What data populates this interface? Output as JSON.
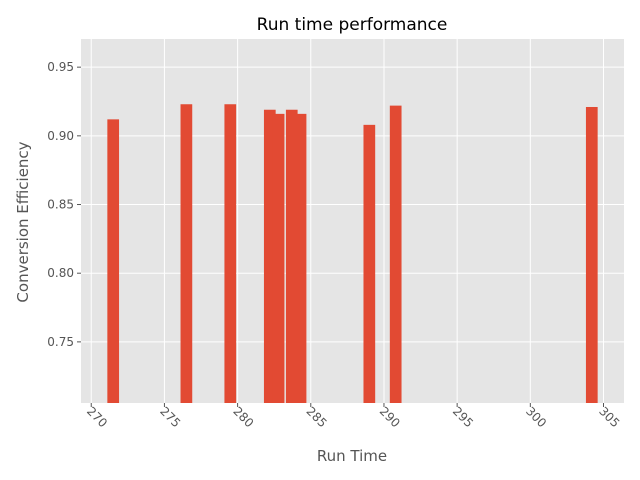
{
  "chart_data": {
    "type": "bar",
    "title": "Run time performance",
    "xlabel": "Run Time",
    "ylabel": "Conversion Efficiency",
    "xlim": [
      269.3,
      306.4
    ],
    "ylim": [
      0.7055,
      0.9705
    ],
    "xticks": [
      270,
      275,
      280,
      285,
      290,
      295,
      300,
      305
    ],
    "yticks": [
      0.75,
      0.8,
      0.85,
      0.9,
      0.95
    ],
    "ytick_format": 2,
    "xtick_rotation": -45,
    "grid": true,
    "bar_width": 0.8,
    "colors": {
      "bar": "#E24A33",
      "plot_bg": "#E5E5E5",
      "grid": "#FFFFFF"
    },
    "points": [
      {
        "x": 271.5,
        "y": 0.912
      },
      {
        "x": 276.5,
        "y": 0.923
      },
      {
        "x": 279.5,
        "y": 0.923
      },
      {
        "x": 282.2,
        "y": 0.919
      },
      {
        "x": 282.8,
        "y": 0.916
      },
      {
        "x": 283.7,
        "y": 0.919
      },
      {
        "x": 284.3,
        "y": 0.916
      },
      {
        "x": 289.0,
        "y": 0.908
      },
      {
        "x": 290.8,
        "y": 0.922
      },
      {
        "x": 304.2,
        "y": 0.921
      }
    ]
  }
}
